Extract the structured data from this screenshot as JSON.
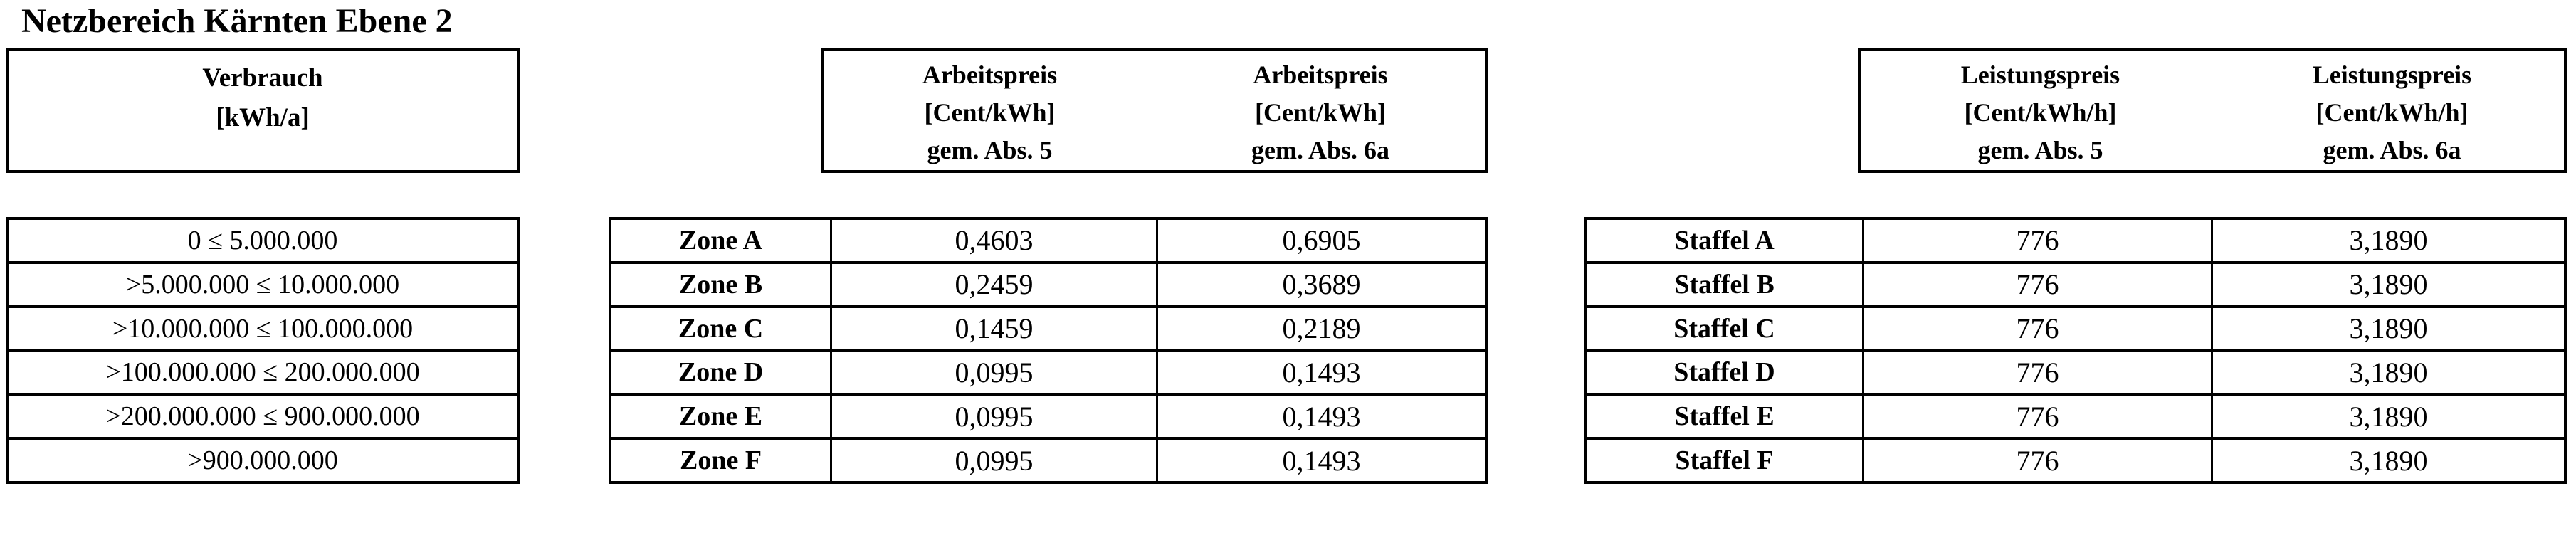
{
  "page_title": "Netzbereich Kärnten Ebene 2",
  "colors": {
    "background": "#ffffff",
    "text": "#000000",
    "border": "#000000"
  },
  "consumption": {
    "header_line1": "Verbrauch",
    "header_line2": "[kWh/a]",
    "rows": [
      "0 ≤ 5.000.000",
      ">5.000.000 ≤ 10.000.000",
      ">10.000.000 ≤ 100.000.000",
      ">100.000.000 ≤ 200.000.000",
      ">200.000.000 ≤ 900.000.000",
      ">900.000.000"
    ]
  },
  "arbeitspreis": {
    "col_abs5": {
      "line1": "Arbeitspreis",
      "line2": "[Cent/kWh]",
      "line3": "gem. Abs. 5"
    },
    "col_abs6a": {
      "line1": "Arbeitspreis",
      "line2": "[Cent/kWh]",
      "line3": "gem. Abs. 6a"
    },
    "rows": [
      {
        "label": "Zone A",
        "abs5": "0,4603",
        "abs6a": "0,6905"
      },
      {
        "label": "Zone B",
        "abs5": "0,2459",
        "abs6a": "0,3689"
      },
      {
        "label": "Zone C",
        "abs5": "0,1459",
        "abs6a": "0,2189"
      },
      {
        "label": "Zone D",
        "abs5": "0,0995",
        "abs6a": "0,1493"
      },
      {
        "label": "Zone E",
        "abs5": "0,0995",
        "abs6a": "0,1493"
      },
      {
        "label": "Zone F",
        "abs5": "0,0995",
        "abs6a": "0,1493"
      }
    ]
  },
  "leistungspreis": {
    "col_abs5": {
      "line1": "Leistungspreis",
      "line2": "[Cent/kWh/h]",
      "line3": "gem. Abs. 5"
    },
    "col_abs6a": {
      "line1": "Leistungspreis",
      "line2": "[Cent/kWh/h]",
      "line3": "gem. Abs. 6a"
    },
    "rows": [
      {
        "label": "Staffel A",
        "abs5": "776",
        "abs6a": "3,1890"
      },
      {
        "label": "Staffel B",
        "abs5": "776",
        "abs6a": "3,1890"
      },
      {
        "label": "Staffel C",
        "abs5": "776",
        "abs6a": "3,1890"
      },
      {
        "label": "Staffel D",
        "abs5": "776",
        "abs6a": "3,1890"
      },
      {
        "label": "Staffel E",
        "abs5": "776",
        "abs6a": "3,1890"
      },
      {
        "label": "Staffel F",
        "abs5": "776",
        "abs6a": "3,1890"
      }
    ]
  }
}
